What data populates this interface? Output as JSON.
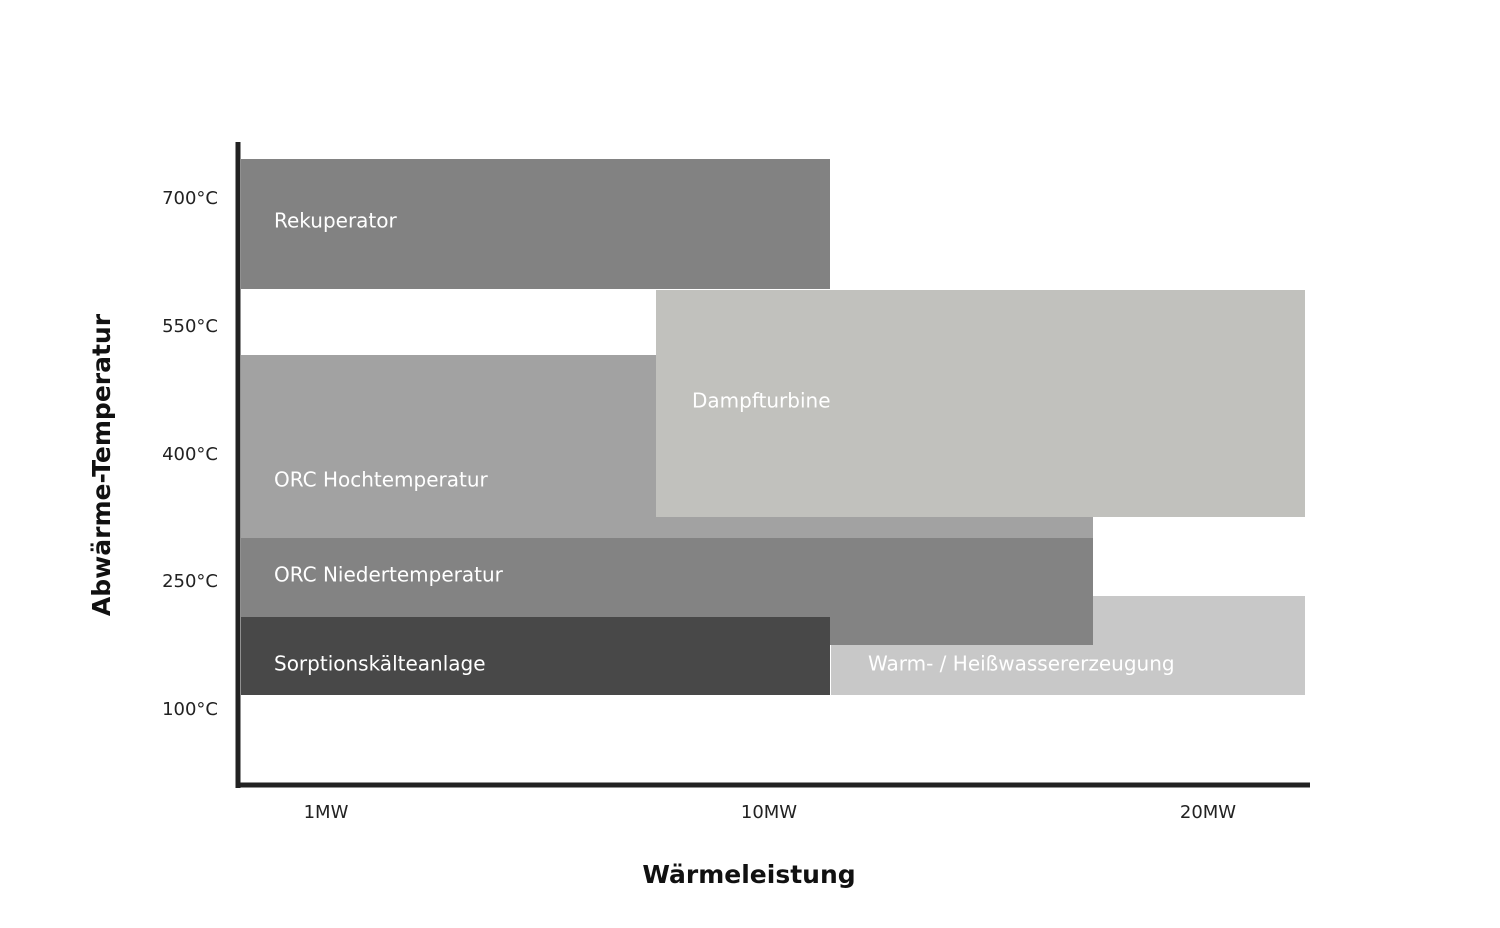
{
  "diagram": {
    "y_axis_title": "Abwärme-Temperatur",
    "x_axis_title": "Wärmeleistung",
    "y_ticks": [
      "700°C",
      "550°C",
      "400°C",
      "250°C",
      "100°C"
    ],
    "x_ticks": [
      "1MW",
      "10MW",
      "20MW"
    ],
    "regions": [
      "Rekuperator",
      "ORC Hochtemperatur",
      "Dampfturbine",
      "Warm- / Heißwassererzeugung",
      "ORC Niedertemperatur",
      "Sorptionskälteanlage"
    ]
  }
}
